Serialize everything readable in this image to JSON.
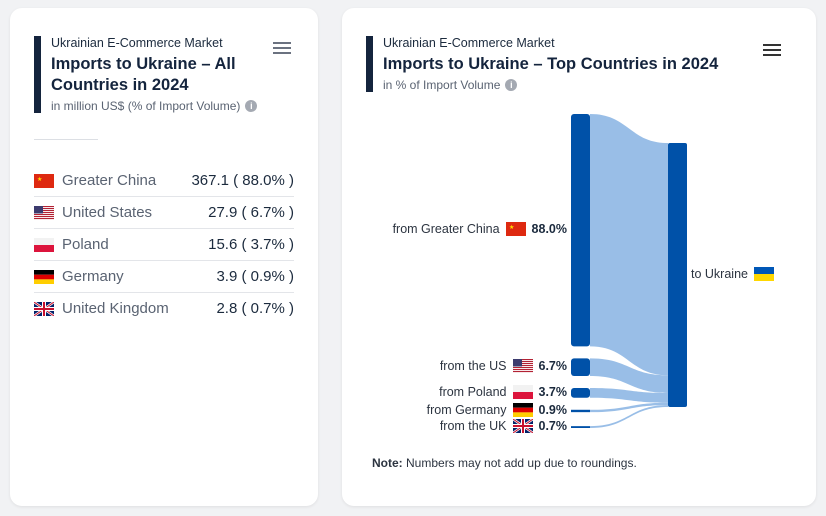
{
  "left_card": {
    "kicker": "Ukrainian E-Commerce Market",
    "title": "Imports to Ukraine – All Countries in 2024",
    "subtitle": "in million US$ (% of Import Volume)",
    "rows": [
      {
        "flag": "cn",
        "country": "Greater China",
        "value": "367.1 ( 88.0% )"
      },
      {
        "flag": "us",
        "country": "United States",
        "value": "27.9 ( 6.7% )"
      },
      {
        "flag": "pl",
        "country": "Poland",
        "value": "15.6 ( 3.7% )"
      },
      {
        "flag": "de",
        "country": "Germany",
        "value": "3.9 ( 0.9% )"
      },
      {
        "flag": "gb",
        "country": "United Kingdom",
        "value": "2.8 ( 0.7% )"
      }
    ]
  },
  "right_card": {
    "kicker": "Ukrainian E-Commerce Market",
    "title": "Imports to Ukraine – Top Countries in 2024",
    "subtitle": "in % of Import Volume",
    "note_label": "Note:",
    "note_text": " Numbers may not add up due to roundings."
  },
  "chart_data": {
    "type": "sankey",
    "target": {
      "label": "to Ukraine",
      "flag": "ua"
    },
    "sources": [
      {
        "label": "from Greater China",
        "flag": "cn",
        "value": 88.0,
        "value_label": "88.0%"
      },
      {
        "label": "from the US",
        "flag": "us",
        "value": 6.7,
        "value_label": "6.7%"
      },
      {
        "label": "from Poland",
        "flag": "pl",
        "value": 3.7,
        "value_label": "3.7%"
      },
      {
        "label": "from Germany",
        "flag": "de",
        "value": 0.9,
        "value_label": "0.9%"
      },
      {
        "label": "from the UK",
        "flag": "gb",
        "value": 0.7,
        "value_label": "0.7%"
      }
    ],
    "colors": {
      "node": "#0051a8",
      "link": "#94bbe6"
    }
  }
}
